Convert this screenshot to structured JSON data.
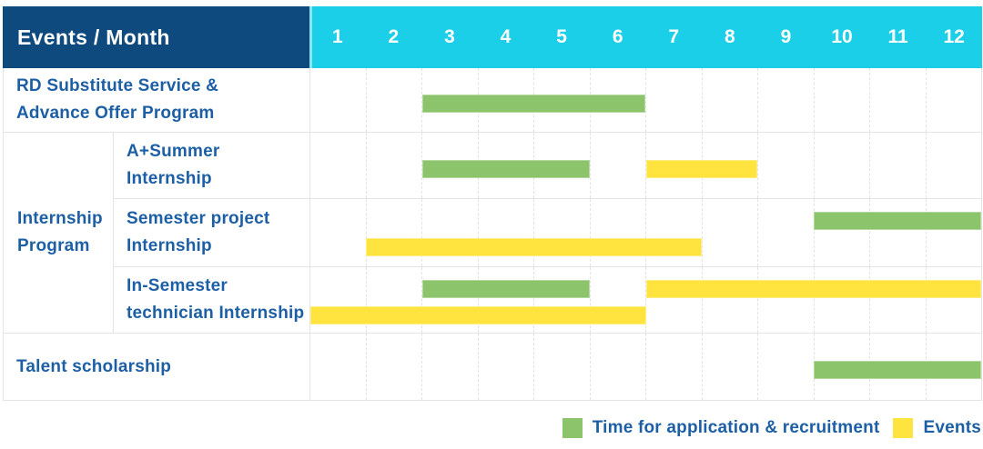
{
  "colors": {
    "header_bg": "#0e4a7d",
    "month_header_bg": "#1ccfe9",
    "month_header_edge": "#8ce5f3",
    "application": "#8cc46b",
    "event": "#ffe440",
    "label_text": "#1d5fa5",
    "header_text": "#ffffff"
  },
  "chart_data": {
    "type": "table",
    "subtype": "gantt-monthly-schedule",
    "title": "Events / Month",
    "x": {
      "label": "Month",
      "categories": [
        "1",
        "2",
        "3",
        "4",
        "5",
        "6",
        "7",
        "8",
        "9",
        "10",
        "11",
        "12"
      ],
      "range": [
        1,
        12
      ]
    },
    "grid": "dashed-vertical-month-lines",
    "legend_position": "bottom-right",
    "legend": [
      {
        "name": "Time for application & recruitment",
        "key": "application",
        "color": "#8cc46b"
      },
      {
        "name": "Events",
        "key": "event",
        "color": "#ffe440"
      }
    ],
    "group_label_lines": [
      "Internship",
      "Program"
    ],
    "rows": [
      {
        "group": "",
        "label": "RD Substitute Service & Advance Offer Program",
        "label_lines": [
          "RD Substitute Service &",
          "Advance Offer Program"
        ],
        "bars": [
          {
            "series": "application",
            "start_month": 3,
            "end_month": 6,
            "lane": "mid"
          }
        ]
      },
      {
        "group": "Internship Program",
        "label": "A+Summer Internship",
        "label_lines": [
          "A+Summer",
          "Internship"
        ],
        "bars": [
          {
            "series": "application",
            "start_month": 3,
            "end_month": 5,
            "lane": "mid"
          },
          {
            "series": "event",
            "start_month": 7,
            "end_month": 8,
            "lane": "mid"
          }
        ]
      },
      {
        "group": "Internship Program",
        "label": "Semester project Internship",
        "label_lines": [
          "Semester project",
          "Internship"
        ],
        "bars": [
          {
            "series": "application",
            "start_month": 10,
            "end_month": 12,
            "lane": "top"
          },
          {
            "series": "event",
            "start_month": 2,
            "end_month": 7,
            "lane": "bottom"
          }
        ]
      },
      {
        "group": "Internship Program",
        "label": "In-Semester technician Internship",
        "label_lines": [
          "In-Semester",
          "technician Internship"
        ],
        "bars": [
          {
            "series": "application",
            "start_month": 3,
            "end_month": 5,
            "lane": "top"
          },
          {
            "series": "event",
            "start_month": 7,
            "end_month": 12,
            "lane": "top"
          },
          {
            "series": "event",
            "start_month": 1,
            "end_month": 6,
            "lane": "bottom"
          }
        ]
      },
      {
        "group": "",
        "label": "Talent scholarship",
        "label_lines": [
          "Talent scholarship"
        ],
        "bars": [
          {
            "series": "application",
            "start_month": 10,
            "end_month": 12,
            "lane": "mid"
          }
        ]
      }
    ]
  }
}
